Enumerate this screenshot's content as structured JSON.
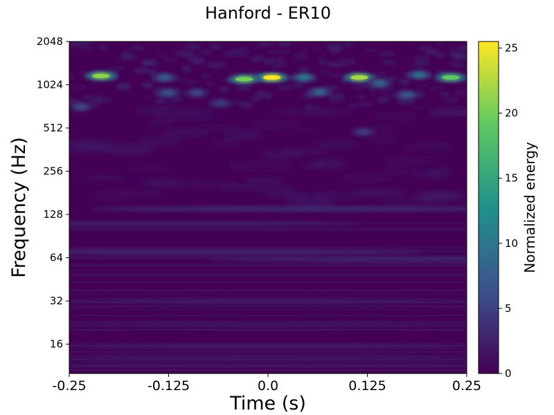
{
  "chart_data": {
    "type": "heatmap",
    "title": "Hanford - ER10",
    "xlabel": "Time (s)",
    "ylabel": "Frequency (Hz)",
    "colorbar_label": "Normalized energy",
    "x_ticks": [
      "-0.25",
      "-0.125",
      "0.0",
      "0.125",
      "0.25"
    ],
    "x_tick_values": [
      -0.25,
      -0.125,
      0.0,
      0.125,
      0.25
    ],
    "xlim": [
      -0.25,
      0.25
    ],
    "y_scale": "log2",
    "y_ticks": [
      "16",
      "32",
      "64",
      "128",
      "256",
      "512",
      "1024",
      "2048"
    ],
    "y_tick_values": [
      16,
      32,
      64,
      128,
      256,
      512,
      1024,
      2048
    ],
    "ylim": [
      10,
      2048
    ],
    "colorbar_ticks": [
      "0",
      "5",
      "10",
      "15",
      "20",
      "25"
    ],
    "colorbar_tick_values": [
      0,
      5,
      10,
      15,
      20,
      25
    ],
    "colorbar_range": [
      0,
      25.5
    ],
    "colormap": [
      "#440154",
      "#3b528b",
      "#21918c",
      "#5ec962",
      "#fde725"
    ],
    "background_energy": 1.0,
    "hotspots": [
      {
        "t": 0.005,
        "f": 1150,
        "energy": 25.5
      },
      {
        "t": -0.03,
        "f": 1120,
        "energy": 20
      },
      {
        "t": -0.21,
        "f": 1180,
        "energy": 21
      },
      {
        "t": 0.115,
        "f": 1150,
        "energy": 22
      },
      {
        "t": 0.23,
        "f": 1150,
        "energy": 19
      },
      {
        "t": 0.045,
        "f": 1150,
        "energy": 11
      },
      {
        "t": 0.19,
        "f": 1200,
        "energy": 10
      },
      {
        "t": -0.13,
        "f": 1150,
        "energy": 8
      },
      {
        "t": 0.14,
        "f": 1050,
        "energy": 9
      },
      {
        "t": 0.065,
        "f": 910,
        "energy": 9
      },
      {
        "t": 0.175,
        "f": 870,
        "energy": 8
      },
      {
        "t": -0.125,
        "f": 900,
        "energy": 7
      },
      {
        "t": 0.12,
        "f": 480,
        "energy": 5
      },
      {
        "t": -0.235,
        "f": 720,
        "energy": 6
      },
      {
        "t": -0.06,
        "f": 760,
        "energy": 5
      },
      {
        "t": -0.09,
        "f": 900,
        "energy": 6
      }
    ],
    "horizontal_bands": [
      {
        "f": 140,
        "t_center": 0.05,
        "energy": 4
      },
      {
        "f": 70,
        "t_center": -0.08,
        "energy": 3.5
      },
      {
        "f": 110,
        "t_center": -0.15,
        "energy": 3
      },
      {
        "f": 62,
        "t_center": 0.2,
        "energy": 3.5
      },
      {
        "f": 32,
        "t_center": 0.0,
        "energy": 2.5
      },
      {
        "f": 22,
        "t_center": 0.0,
        "energy": 2
      },
      {
        "f": 15.5,
        "t_center": 0.0,
        "energy": 2.5
      },
      {
        "f": 13,
        "t_center": 0.0,
        "energy": 2
      }
    ]
  }
}
